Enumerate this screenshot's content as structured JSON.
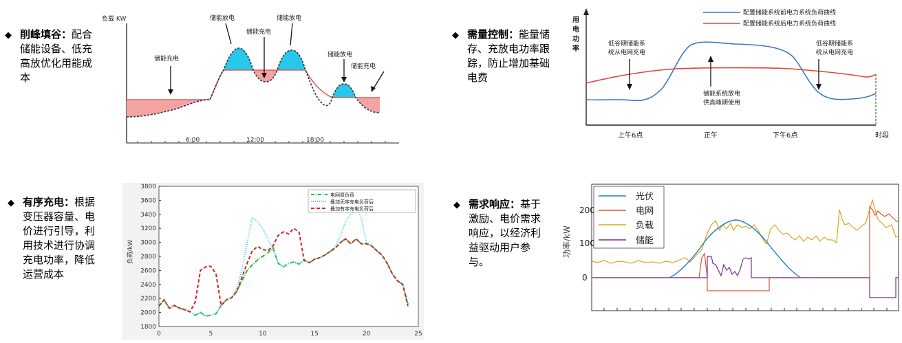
{
  "bullets": [
    {
      "title": "削峰填谷",
      "colon": "：",
      "body": "配合储能设备、低充高放优化用能成本"
    },
    {
      "title": "需量控制",
      "colon": "：",
      "body": "能量储存、充放电功率跟踪，防止增加基础电费"
    },
    {
      "title": "有序充电",
      "colon": "：",
      "body": "根据变压器容量、电价进行引导，利用技术进行协调充电功率，降低运营成本"
    },
    {
      "title": "需求响应",
      "colon": "：",
      "body": "基于激励、电价需求响应，以经济利益驱动用户参与。"
    }
  ],
  "bullet_marker": "◆",
  "chart_data": [
    {
      "type": "area",
      "title": "",
      "ylabel": "负载 KW",
      "x_ticks": [
        "6:00",
        "12:00",
        "18:00"
      ],
      "annotations": [
        "储能充电",
        "储能放电",
        "储能充电",
        "储能放电",
        "储能放电",
        "储能充电"
      ],
      "colors": {
        "discharge": "#22ccee",
        "charge": "#f49a9a",
        "line": "#d9645a",
        "dashed": "#2a2f4a"
      }
    },
    {
      "type": "line",
      "ylabel": "用电功率",
      "xlabel": "时段",
      "x_ticks": [
        "上午6点",
        "正午",
        "下午6点"
      ],
      "series": [
        {
          "name": "配置储能系统前电力系统负荷曲线",
          "color": "#3a76c8"
        },
        {
          "name": "配置储能系统后电力系统负荷曲线",
          "color": "#e0453a"
        }
      ],
      "annotations": [
        "低谷期储能系统从电网充电",
        "储能系统放电供高峰期使用",
        "低谷期储能系统从电网充电"
      ]
    },
    {
      "type": "line",
      "ylabel": "负荷/kW",
      "xlim": [
        0,
        25
      ],
      "ylim": [
        1800,
        3800
      ],
      "x_ticks": [
        0,
        5,
        10,
        15,
        20,
        25
      ],
      "y_ticks": [
        1800,
        2000,
        2200,
        2400,
        2600,
        2800,
        3000,
        3200,
        3400,
        3600,
        3800
      ],
      "x": [
        0,
        0.5,
        1,
        1.5,
        2,
        2.5,
        3,
        3.5,
        4,
        4.5,
        5,
        5.5,
        6,
        6.5,
        7,
        7.5,
        8,
        8.5,
        9,
        9.5,
        10,
        10.5,
        11,
        11.5,
        12,
        12.5,
        13,
        13.5,
        14,
        14.5,
        15,
        15.5,
        16,
        16.5,
        17,
        17.5,
        18,
        18.5,
        19,
        19.5,
        20,
        20.5,
        21,
        21.5,
        22,
        22.5,
        23,
        23.5,
        24
      ],
      "series": [
        {
          "name": "电网原负荷",
          "color": "#22bb22",
          "values": [
            2090,
            2180,
            2060,
            2100,
            2060,
            2040,
            2010,
            1960,
            2000,
            1950,
            1960,
            1980,
            2100,
            2180,
            2210,
            2300,
            2450,
            2600,
            2680,
            2750,
            2800,
            2850,
            2920,
            2700,
            2650,
            2700,
            2720,
            2690,
            2750,
            2710,
            2760,
            2780,
            2820,
            2870,
            2920,
            3000,
            3050,
            2980,
            3050,
            2980,
            2980,
            2950,
            2880,
            2820,
            2700,
            2550,
            2450,
            2400,
            2120
          ]
        },
        {
          "name": "叠加无序充电负荷后",
          "color": "#33d6e6",
          "values": [
            2090,
            2180,
            2060,
            2100,
            2060,
            2040,
            2010,
            1960,
            2000,
            1950,
            1960,
            1980,
            2100,
            2180,
            2210,
            2350,
            2600,
            3000,
            3350,
            3300,
            3200,
            3050,
            2900,
            2700,
            2650,
            2700,
            2720,
            2690,
            2750,
            2710,
            2760,
            2780,
            2820,
            2870,
            2950,
            3100,
            3300,
            3400,
            3500,
            3350,
            3000,
            2950,
            2880,
            2820,
            2700,
            2550,
            2450,
            2400,
            2120
          ]
        },
        {
          "name": "叠加有序充电负荷后",
          "color": "#dd2222",
          "values": [
            2090,
            2180,
            2060,
            2100,
            2060,
            2040,
            2010,
            2150,
            2600,
            2650,
            2660,
            2550,
            2100,
            2180,
            2210,
            2300,
            2500,
            2700,
            2880,
            2940,
            2900,
            2880,
            2950,
            3100,
            3150,
            3120,
            3200,
            3150,
            2740,
            2710,
            2760,
            2780,
            2820,
            2870,
            2920,
            3000,
            3050,
            2980,
            3050,
            2980,
            2980,
            2950,
            2880,
            2820,
            2700,
            2550,
            2450,
            2400,
            2090
          ]
        }
      ]
    },
    {
      "type": "line",
      "ylabel": "功率/kW",
      "y_ticks": [
        0,
        100,
        200
      ],
      "ylim": [
        -100,
        260
      ],
      "series": [
        {
          "name": "光伏",
          "color": "#1f7fc6"
        },
        {
          "name": "电网",
          "color": "#d9582a"
        },
        {
          "name": "负载",
          "color": "#e0a11b"
        },
        {
          "name": "储能",
          "color": "#7c2c94"
        }
      ]
    }
  ]
}
